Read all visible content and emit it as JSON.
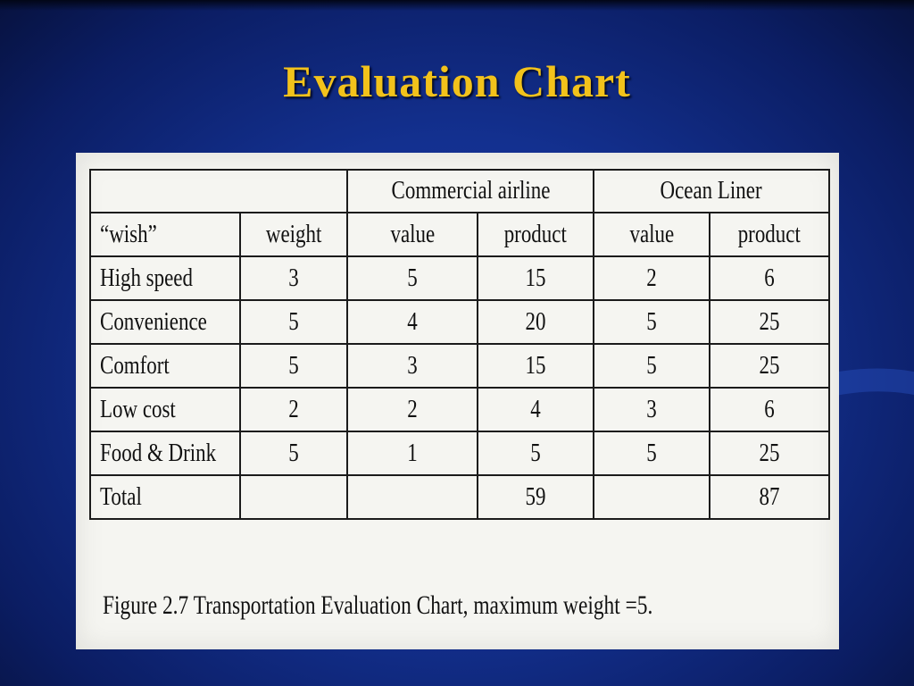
{
  "slide": {
    "title": "Evaluation Chart"
  },
  "table": {
    "group_headers": {
      "commercial_airline": "Commercial airline",
      "ocean_liner": "Ocean Liner"
    },
    "column_headers": {
      "wish": "“wish”",
      "weight": "weight",
      "airline_value": "value",
      "airline_product": "product",
      "liner_value": "value",
      "liner_product": "product"
    },
    "rows": [
      {
        "wish": "High speed",
        "weight": "3",
        "airline_value": "5",
        "airline_product": "15",
        "liner_value": "2",
        "liner_product": "6"
      },
      {
        "wish": "Convenience",
        "weight": "5",
        "airline_value": "4",
        "airline_product": "20",
        "liner_value": "5",
        "liner_product": "25"
      },
      {
        "wish": "Comfort",
        "weight": "5",
        "airline_value": "3",
        "airline_product": "15",
        "liner_value": "5",
        "liner_product": "25"
      },
      {
        "wish": "Low cost",
        "weight": "2",
        "airline_value": "2",
        "airline_product": "4",
        "liner_value": "3",
        "liner_product": "6"
      },
      {
        "wish": "Food & Drink",
        "weight": "5",
        "airline_value": "1",
        "airline_product": "5",
        "liner_value": "5",
        "liner_product": "25"
      }
    ],
    "total": {
      "label": "Total",
      "airline_product": "59",
      "liner_product": "87"
    }
  },
  "caption": "Figure 2.7  Transportation Evaluation Chart, maximum weight =5."
}
